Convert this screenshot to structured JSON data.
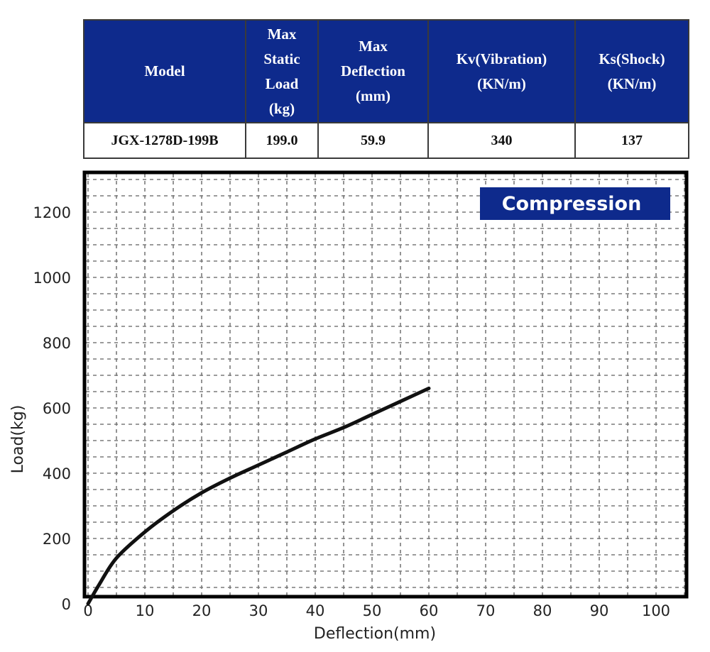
{
  "spec_table": {
    "headers": [
      {
        "lines": [
          "Model"
        ]
      },
      {
        "lines": [
          "Max",
          "Static",
          "Load",
          "(kg)"
        ]
      },
      {
        "lines": [
          "Max",
          "Deflection",
          "(mm)"
        ]
      },
      {
        "lines": [
          "Kv(Vibration)",
          "(KN/m)"
        ]
      },
      {
        "lines": [
          "Ks(Shock)",
          "(KN/m)"
        ]
      }
    ],
    "row": [
      "JGX-1278D-199B",
      "199.0",
      "59.9",
      "340",
      "137"
    ]
  },
  "colors": {
    "header_bg": "#0e2a8c",
    "badge_bg": "#0e2a8c",
    "curve": "#111111",
    "grid": "#7a7a7a"
  },
  "chart_data": {
    "type": "line",
    "badge": "Compression",
    "xlabel": "Deflection(mm)",
    "ylabel": "Load(kg)",
    "xlim": [
      0,
      105
    ],
    "ylim": [
      0,
      1300
    ],
    "xticks": [
      0,
      10,
      20,
      30,
      40,
      50,
      60,
      70,
      80,
      90,
      100
    ],
    "yticks": [
      0,
      200,
      400,
      600,
      800,
      1000,
      1200
    ],
    "grid": true,
    "series": [
      {
        "x": [
          0,
          2,
          5,
          10,
          15,
          20,
          25,
          30,
          35,
          40,
          45,
          50,
          55,
          60
        ],
        "y": [
          0,
          60,
          140,
          220,
          285,
          340,
          385,
          425,
          465,
          505,
          540,
          580,
          620,
          660
        ]
      }
    ]
  }
}
